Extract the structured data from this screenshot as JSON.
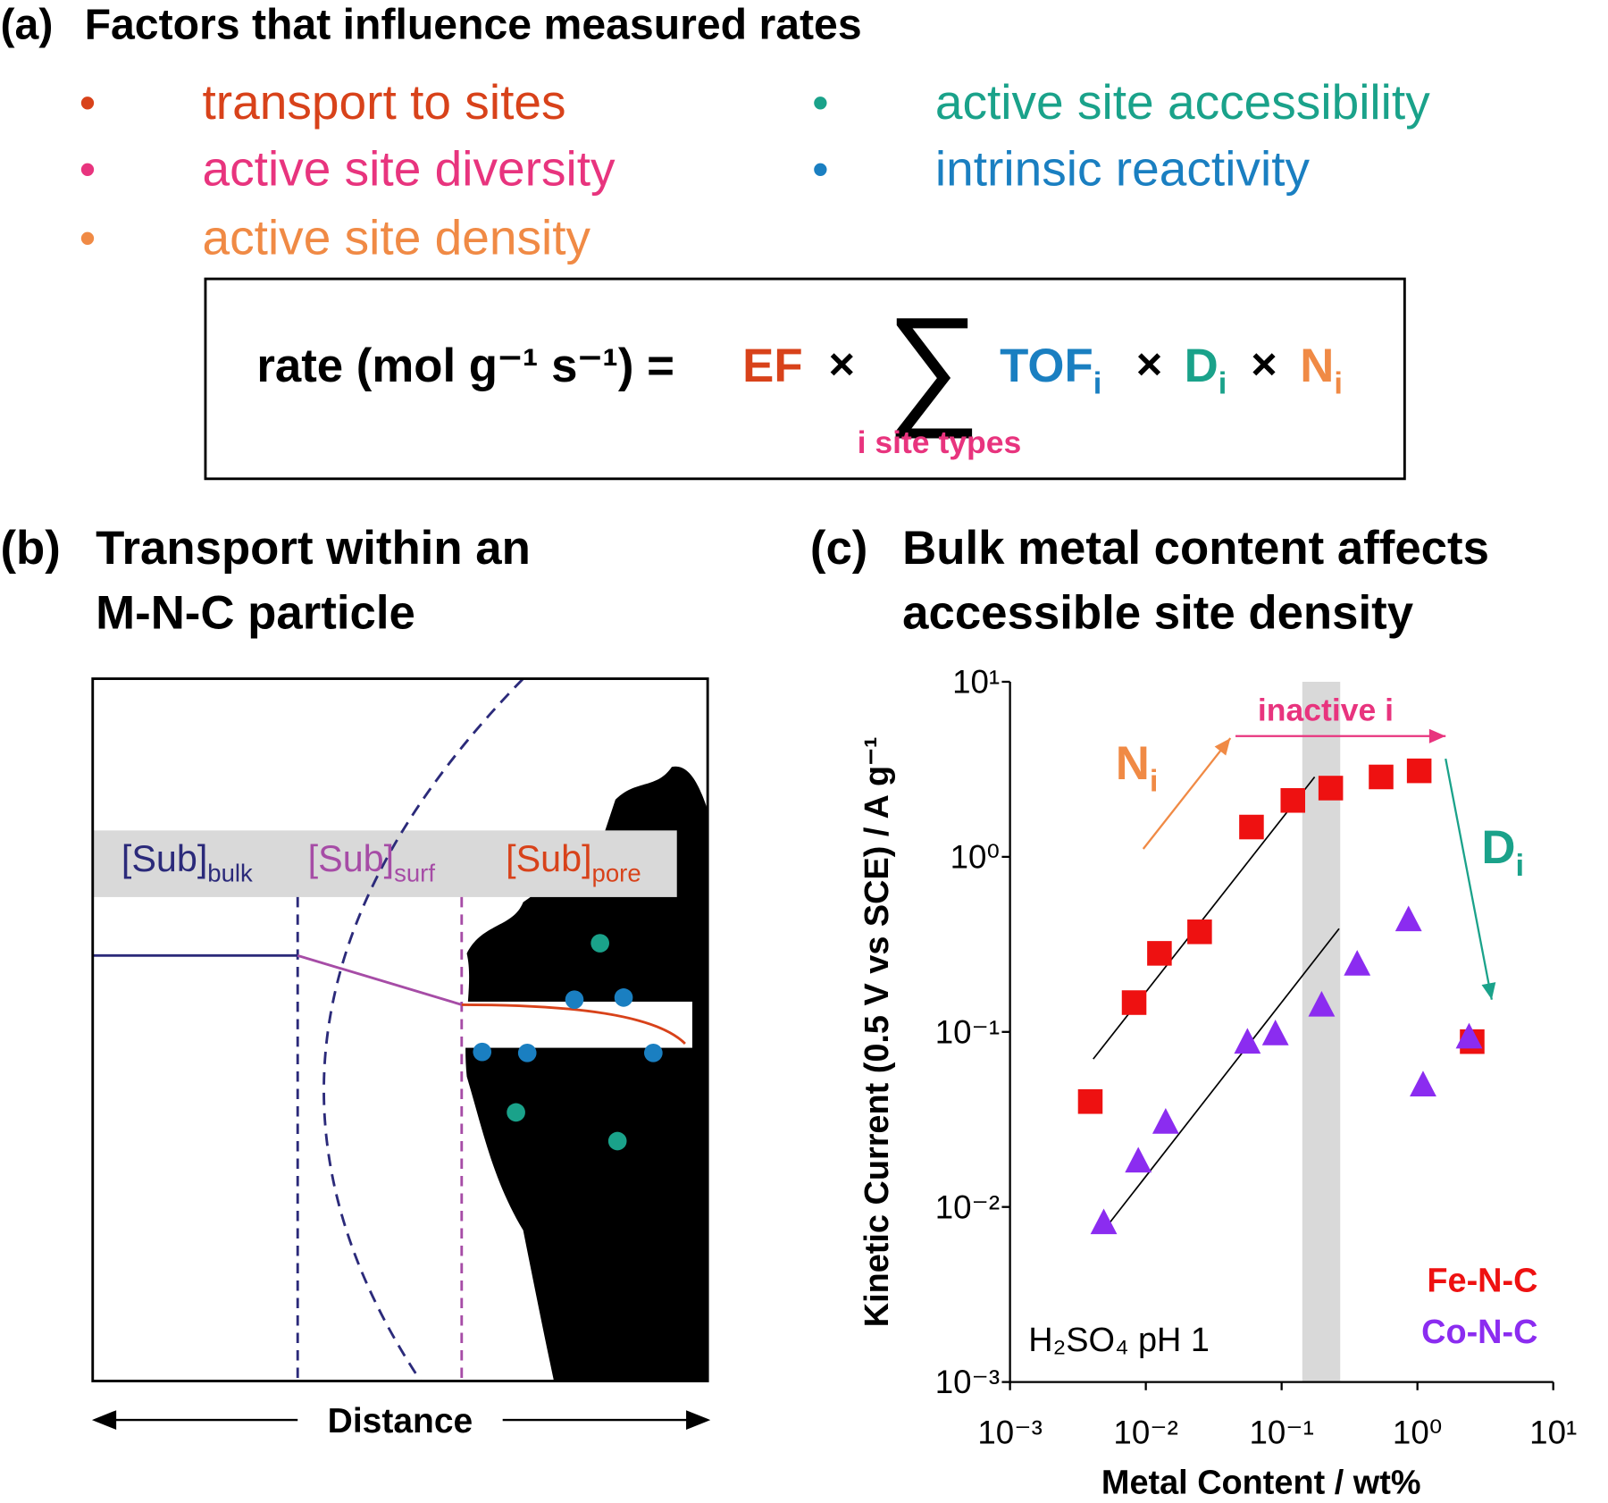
{
  "panel_a": {
    "label": "(a)",
    "title": "Factors that influence measured rates",
    "bullets": [
      {
        "text": "transport to sites",
        "color": "#d8421a"
      },
      {
        "text": "active site diversity",
        "color": "#e8347e"
      },
      {
        "text": "active site density",
        "color": "#f08a45"
      },
      {
        "text": "active site accessibility",
        "color": "#1aa28a"
      },
      {
        "text": "intrinsic reactivity",
        "color": "#1a7fc1"
      }
    ],
    "bullet_symbol": "•",
    "equation": {
      "lhs": "rate (mol g⁻¹ s⁻¹) =",
      "ef": "EF",
      "times": "×",
      "sum": "∑",
      "tof": "TOF",
      "d": "D",
      "n": "N",
      "subscript": "i",
      "sum_label": "i site types"
    }
  },
  "panel_b": {
    "label": "(b)",
    "title_lines": [
      "Transport within an",
      "M-N-C particle"
    ],
    "sub": "[Sub]",
    "regions": [
      "bulk",
      "surf",
      "pore"
    ],
    "axis_label": "Distance"
  },
  "panel_c": {
    "label": "(c)",
    "title_lines": [
      "Bulk metal content affects",
      "accessible site density"
    ]
  },
  "chart_data": {
    "type": "scatter",
    "x_label": "Metal Content / wt%",
    "y_label": "Kinetic Current (0.5 V vs SCE) / A g⁻¹",
    "log_x": true,
    "log_y": true,
    "xlim": [
      0.001,
      10
    ],
    "ylim": [
      0.001,
      10
    ],
    "xticks": [
      {
        "value": 0.001,
        "label": "10⁻³"
      },
      {
        "value": 0.01,
        "label": "10⁻²"
      },
      {
        "value": 0.1,
        "label": "10⁻¹"
      },
      {
        "value": 1,
        "label": "10⁰"
      },
      {
        "value": 10,
        "label": "10¹"
      }
    ],
    "yticks": [
      {
        "value": 0.001,
        "label": "10⁻³"
      },
      {
        "value": 0.01,
        "label": "10⁻²"
      },
      {
        "value": 0.1,
        "label": "10⁻¹"
      },
      {
        "value": 1,
        "label": "10⁰"
      },
      {
        "value": 10,
        "label": "10¹"
      }
    ],
    "legend": "lower right",
    "series": [
      {
        "name": "Fe-N-C",
        "color": "#ee1111",
        "marker": "square",
        "x": [
          0.0039,
          0.0082,
          0.0126,
          0.0249,
          0.06,
          0.121,
          0.23,
          0.54,
          1.03,
          2.53
        ],
        "values": [
          0.04,
          0.147,
          0.281,
          0.373,
          1.48,
          2.1,
          2.47,
          2.86,
          3.1,
          0.088
        ]
      },
      {
        "name": "Co-N-C",
        "color": "#8b2cf0",
        "marker": "triangle",
        "x": [
          0.0049,
          0.0088,
          0.014,
          0.056,
          0.09,
          0.197,
          0.36,
          0.86,
          1.1,
          2.4
        ],
        "values": [
          0.008,
          0.018,
          0.03,
          0.086,
          0.096,
          0.14,
          0.24,
          0.43,
          0.049,
          0.092
        ]
      }
    ],
    "fit_lines": [
      {
        "x": [
          0.0041,
          0.175
        ],
        "values": [
          0.07,
          2.86
        ]
      },
      {
        "x": [
          0.0054,
          0.265
        ],
        "values": [
          0.0081,
          0.389
        ]
      }
    ],
    "shaded_x": [
      0.142,
      0.27
    ],
    "condition": "H₂SO₄ pH 1",
    "annotations": {
      "n": "N",
      "d": "D",
      "subscript": "i",
      "inactive": "inactive i"
    }
  }
}
